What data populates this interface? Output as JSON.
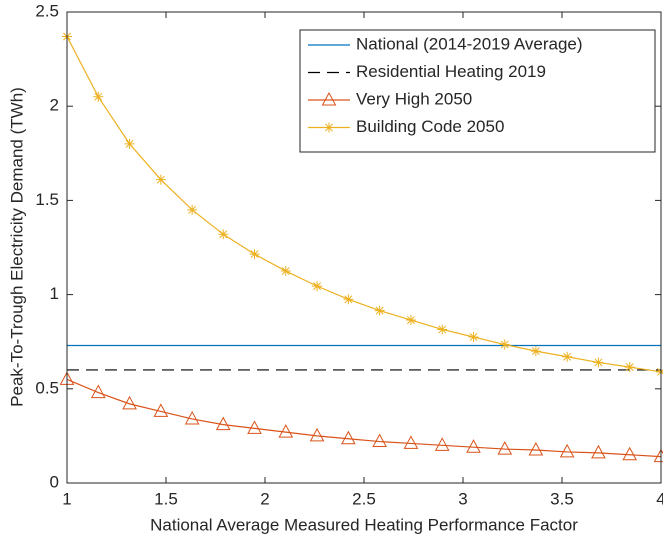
{
  "chart_data": {
    "type": "line",
    "xlabel": "National Average Measured Heating Performance Factor",
    "ylabel": "Peak-To-Trough Electricity Demand (TWh)",
    "xlim": [
      1,
      4
    ],
    "xticks": [
      1,
      1.5,
      2,
      2.5,
      3,
      3.5,
      4
    ],
    "ylim": [
      0,
      2.5
    ],
    "yticks": [
      0,
      0.5,
      1,
      1.5,
      2,
      2.5
    ],
    "legend": "top-right",
    "series": [
      {
        "name": "National (2014-2019 Average)",
        "color": "#0072BD",
        "dash": "solid",
        "marker": "none",
        "x": [
          1,
          4
        ],
        "values": [
          0.73,
          0.73
        ]
      },
      {
        "name": "Residential Heating 2019",
        "color": "#000000",
        "dash": "dashed",
        "marker": "none",
        "x": [
          1,
          4
        ],
        "values": [
          0.6,
          0.6
        ]
      },
      {
        "name": "Very High 2050",
        "color": "#D95319",
        "dash": "solid",
        "marker": "triangle",
        "x": [
          1,
          1.158,
          1.316,
          1.474,
          1.632,
          1.789,
          1.947,
          2.105,
          2.263,
          2.421,
          2.579,
          2.737,
          2.895,
          3.053,
          3.211,
          3.368,
          3.526,
          3.684,
          3.842,
          4
        ],
        "values": [
          0.55,
          0.48,
          0.42,
          0.38,
          0.34,
          0.31,
          0.29,
          0.27,
          0.25,
          0.235,
          0.22,
          0.21,
          0.2,
          0.19,
          0.18,
          0.175,
          0.165,
          0.16,
          0.15,
          0.14
        ]
      },
      {
        "name": "Building Code 2050",
        "color": "#EDB120",
        "dash": "solid",
        "marker": "asterisk",
        "x": [
          1,
          1.158,
          1.316,
          1.474,
          1.632,
          1.789,
          1.947,
          2.105,
          2.263,
          2.421,
          2.579,
          2.737,
          2.895,
          3.053,
          3.211,
          3.368,
          3.526,
          3.684,
          3.842,
          4
        ],
        "values": [
          2.37,
          2.05,
          1.8,
          1.61,
          1.45,
          1.32,
          1.215,
          1.125,
          1.045,
          0.975,
          0.915,
          0.865,
          0.815,
          0.775,
          0.735,
          0.7,
          0.67,
          0.64,
          0.615,
          0.59
        ]
      }
    ]
  }
}
